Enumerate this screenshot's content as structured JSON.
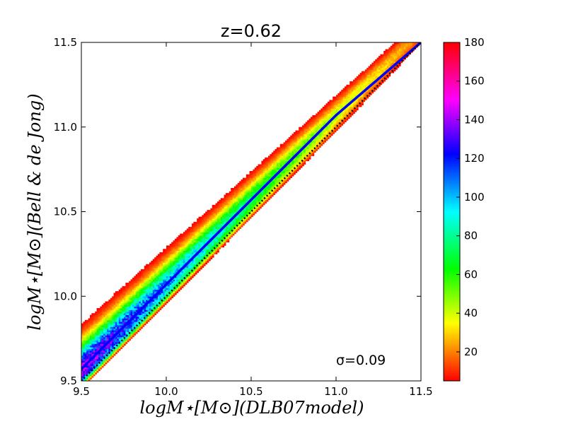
{
  "chart_data": {
    "type": "heatmap",
    "title": "z=0.62",
    "xlabel": "logM⋆[M⊙](DLB07model)",
    "ylabel": "logM⋆[M⊙](Bell & de Jong)",
    "xlim": [
      9.5,
      11.5
    ],
    "ylim": [
      9.5,
      11.5
    ],
    "x_ticks": [
      9.5,
      10.0,
      10.5,
      11.0,
      11.5
    ],
    "x_tick_labels": [
      "9.5",
      "10.0",
      "10.5",
      "11.0",
      "11.5"
    ],
    "y_ticks": [
      9.5,
      10.0,
      10.5,
      11.0,
      11.5
    ],
    "y_tick_labels": [
      "9.5",
      "10.0",
      "10.5",
      "11.0",
      "11.5"
    ],
    "annotation": "σ=0.09",
    "sigma": 0.09,
    "ridge_offset": 0.07,
    "colorbar": {
      "min": 5,
      "max": 180,
      "ticks": [
        20,
        40,
        60,
        80,
        100,
        120,
        140,
        160,
        180
      ],
      "tick_labels": [
        "20",
        "40",
        "60",
        "80",
        "100",
        "120",
        "140",
        "160",
        "180"
      ]
    },
    "series": [
      {
        "name": "median relation",
        "color": "#0000ff",
        "x": [
          9.5,
          10.0,
          10.5,
          11.0,
          11.5
        ],
        "y": [
          9.57,
          10.07,
          10.57,
          11.07,
          11.5
        ]
      },
      {
        "name": "one-to-one",
        "style": "dotted",
        "color": "#000000",
        "x": [
          9.5,
          11.5
        ],
        "y": [
          9.5,
          11.5
        ]
      }
    ]
  }
}
